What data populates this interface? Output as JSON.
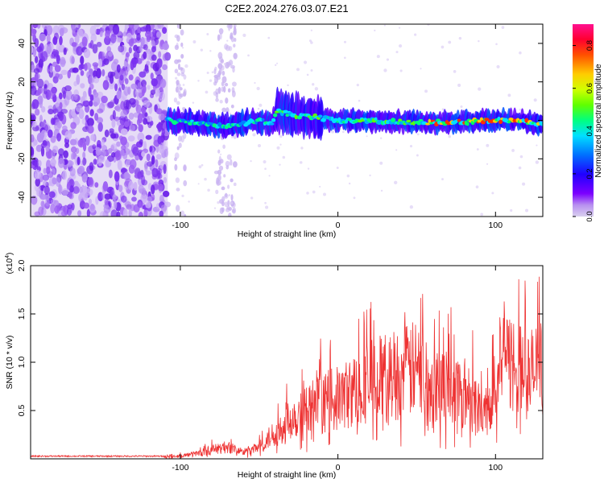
{
  "figure": {
    "title": "C2E2.2024.276.03.07.E21"
  },
  "colors": {
    "background": "#ffffff",
    "spectrogram_noise": "#7a2ff0",
    "snr_line": "#ee3333",
    "colormap": [
      "#d9d0ef",
      "#7b00ff",
      "#3a00ff",
      "#0060ff",
      "#00e0ff",
      "#00ff60",
      "#c0ff00",
      "#ffcc00",
      "#ff3000",
      "#ff1070"
    ]
  },
  "chart_data": [
    {
      "type": "heatmap",
      "name": "spectrogram",
      "xlabel": "Height of straight line (km)",
      "ylabel": "Frequency (Hz)",
      "xlim": [
        -195,
        130
      ],
      "ylim": [
        -50,
        50
      ],
      "x_ticks": [
        -100,
        0,
        100
      ],
      "x_tick_labels": [
        "-100",
        "0",
        "100"
      ],
      "y_ticks": [
        -40,
        -20,
        0,
        20,
        40
      ],
      "y_tick_labels": [
        "-40",
        "-20",
        "0",
        "20",
        "40"
      ],
      "noise_region_x": [
        -195,
        -108
      ],
      "sparse_columns_x": [
        -100,
        -75,
        -68
      ],
      "signal_track": {
        "x": [
          -108,
          -90,
          -75,
          -62,
          -50,
          -42,
          -38,
          -30,
          -20,
          -10,
          0,
          20,
          40,
          60,
          80,
          100,
          115,
          130
        ],
        "frequency": [
          0,
          -1,
          -3,
          -2,
          0,
          -2,
          5,
          3,
          2,
          1,
          0,
          0,
          -1,
          -1,
          -1,
          0,
          0,
          -2
        ]
      },
      "colorbar": {
        "label": "Normalized spectral amplitude",
        "range": [
          0.0,
          0.9
        ],
        "ticks": [
          0.0,
          0.2,
          0.4,
          0.6,
          0.8
        ],
        "tick_labels": [
          "0.0",
          "0.2",
          "0.4",
          "0.6",
          "0.8"
        ]
      }
    },
    {
      "type": "line",
      "name": "snr",
      "xlabel": "Height of straight line (km)",
      "ylabel": "SNR (10 * v/v)",
      "multiplier_label": "(x10",
      "multiplier_exponent": "4",
      "xlim": [
        -195,
        130
      ],
      "ylim": [
        0,
        20000
      ],
      "x_ticks": [
        -100,
        0,
        100
      ],
      "x_tick_labels": [
        "-100",
        "0",
        "100"
      ],
      "y_ticks": [
        5000,
        10000,
        15000,
        20000
      ],
      "y_tick_labels": [
        "0.5",
        "1.0",
        "1.5",
        "2.0"
      ],
      "envelope": {
        "x": [
          -195,
          -110,
          -100,
          -90,
          -80,
          -70,
          -60,
          -50,
          -40,
          -30,
          -20,
          -10,
          0,
          10,
          20,
          30,
          40,
          50,
          60,
          70,
          80,
          90,
          95,
          100,
          110,
          120,
          130
        ],
        "y": [
          200,
          250,
          400,
          700,
          1200,
          1600,
          900,
          1500,
          3500,
          5500,
          6500,
          7500,
          8000,
          9000,
          10500,
          11000,
          11500,
          12000,
          10500,
          9500,
          9000,
          7000,
          6000,
          12000,
          13000,
          11000,
          12500
        ]
      }
    }
  ]
}
